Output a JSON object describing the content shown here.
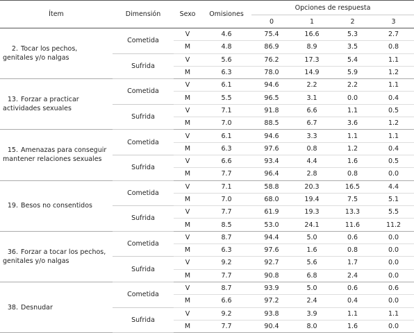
{
  "header": {
    "item": "Ítem",
    "dimension": "Dimensión",
    "sex": "Sexo",
    "omissions": "Omisiones",
    "options_title": "Opciones de respuesta",
    "options": [
      "0",
      "1",
      "2",
      "3"
    ]
  },
  "items": [
    {
      "number": "2.",
      "text": "Tocar los pechos, genitales y/o nalgas",
      "groups": [
        {
          "dimension": "Cometida",
          "rows": [
            {
              "sex": "V",
              "values": [
                "4.6",
                "75.4",
                "16.6",
                "5.3",
                "2.7"
              ]
            },
            {
              "sex": "M",
              "values": [
                "4.8",
                "86.9",
                "8.9",
                "3.5",
                "0.8"
              ]
            }
          ]
        },
        {
          "dimension": "Sufrida",
          "rows": [
            {
              "sex": "V",
              "values": [
                "5.6",
                "76.2",
                "17.3",
                "5.4",
                "1.1"
              ]
            },
            {
              "sex": "M",
              "values": [
                "6.3",
                "78.0",
                "14.9",
                "5.9",
                "1.2"
              ]
            }
          ]
        }
      ]
    },
    {
      "number": "13.",
      "text": "Forzar a practicar actividades sexuales",
      "groups": [
        {
          "dimension": "Cometida",
          "rows": [
            {
              "sex": "V",
              "values": [
                "6.1",
                "94.6",
                "2.2",
                "2.2",
                "1.1"
              ]
            },
            {
              "sex": "M",
              "values": [
                "5.5",
                "96.5",
                "3.1",
                "0.0",
                "0.4"
              ]
            }
          ]
        },
        {
          "dimension": "Sufrida",
          "rows": [
            {
              "sex": "V",
              "values": [
                "7.1",
                "91.8",
                "6.6",
                "1.1",
                "0.5"
              ]
            },
            {
              "sex": "M",
              "values": [
                "7.0",
                "88.5",
                "6.7",
                "3.6",
                "1.2"
              ]
            }
          ]
        }
      ]
    },
    {
      "number": "15.",
      "text": "Amenazas para conseguir mantener relaciones sexuales",
      "groups": [
        {
          "dimension": "Cometida",
          "rows": [
            {
              "sex": "V",
              "values": [
                "6.1",
                "94.6",
                "3.3",
                "1.1",
                "1.1"
              ]
            },
            {
              "sex": "M",
              "values": [
                "6.3",
                "97.6",
                "0.8",
                "1.2",
                "0.4"
              ]
            }
          ]
        },
        {
          "dimension": "Sufrida",
          "rows": [
            {
              "sex": "V",
              "values": [
                "6.6",
                "93.4",
                "4.4",
                "1.6",
                "0.5"
              ]
            },
            {
              "sex": "M",
              "values": [
                "7.7",
                "96.4",
                "2.8",
                "0.8",
                "0.0"
              ]
            }
          ]
        }
      ]
    },
    {
      "number": "19.",
      "text": "Besos no consentidos",
      "groups": [
        {
          "dimension": "Cometida",
          "rows": [
            {
              "sex": "V",
              "values": [
                "7.1",
                "58.8",
                "20.3",
                "16.5",
                "4.4"
              ]
            },
            {
              "sex": "M",
              "values": [
                "7.0",
                "68.0",
                "19.4",
                "7.5",
                "5.1"
              ]
            }
          ]
        },
        {
          "dimension": "Sufrida",
          "rows": [
            {
              "sex": "V",
              "values": [
                "7.7",
                "61.9",
                "19.3",
                "13.3",
                "5.5"
              ]
            },
            {
              "sex": "M",
              "values": [
                "8.5",
                "53.0",
                "24.1",
                "11.6",
                "11.2"
              ]
            }
          ]
        }
      ]
    },
    {
      "number": "36.",
      "text": "Forzar a tocar los pechos, genitales y/o nalgas",
      "groups": [
        {
          "dimension": "Cometida",
          "rows": [
            {
              "sex": "V",
              "values": [
                "8.7",
                "94.4",
                "5.0",
                "0.6",
                "0.0"
              ]
            },
            {
              "sex": "M",
              "values": [
                "6.3",
                "97.6",
                "1.6",
                "0.8",
                "0.0"
              ]
            }
          ]
        },
        {
          "dimension": "Sufrida",
          "rows": [
            {
              "sex": "V",
              "values": [
                "9.2",
                "92.7",
                "5.6",
                "1.7",
                "0.0"
              ]
            },
            {
              "sex": "M",
              "values": [
                "7.7",
                "90.8",
                "6.8",
                "2.4",
                "0.0"
              ]
            }
          ]
        }
      ]
    },
    {
      "number": "38.",
      "text": "Desnudar",
      "groups": [
        {
          "dimension": "Cometida",
          "rows": [
            {
              "sex": "V",
              "values": [
                "8.7",
                "93.9",
                "5.0",
                "0.6",
                "0.6"
              ]
            },
            {
              "sex": "M",
              "values": [
                "6.6",
                "97.2",
                "2.4",
                "0.4",
                "0.0"
              ]
            }
          ]
        },
        {
          "dimension": "Sufrida",
          "rows": [
            {
              "sex": "V",
              "values": [
                "9.2",
                "93.8",
                "3.9",
                "1.1",
                "1.1"
              ]
            },
            {
              "sex": "M",
              "values": [
                "7.7",
                "90.4",
                "8.0",
                "1.6",
                "0.0"
              ]
            }
          ]
        }
      ]
    }
  ]
}
